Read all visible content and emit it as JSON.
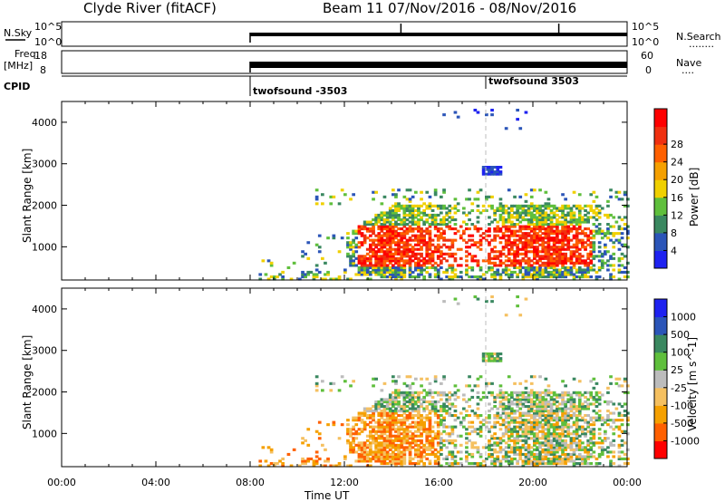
{
  "header": {
    "station": "Clyde River (fitACF)",
    "beam_date": "Beam 11   07/Nov/2016 - 08/Nov/2016"
  },
  "noise_panel": {
    "left_label": "N.Sky",
    "left_ticks": [
      "10^5",
      "10^0"
    ],
    "right_ticks": [
      "10^5",
      "10^0"
    ],
    "right_label": "N.Search",
    "right_dots": "........"
  },
  "freq_panel": {
    "left_label_1": "Freq.",
    "left_label_2": "[MHz]",
    "left_ticks": [
      "18",
      "8"
    ],
    "right_ticks": [
      "60",
      "0"
    ],
    "right_label": "Nave",
    "right_dots": "...."
  },
  "cpid": {
    "label": "CPID",
    "markers": [
      {
        "time_h": 8,
        "text": "twofsound -3503"
      },
      {
        "time_h": 18,
        "text": "twofsound 3503"
      }
    ]
  },
  "colors": {
    "power_scale": [
      "#1e22f0",
      "#2b55b8",
      "#3a8860",
      "#5fbf3c",
      "#f0d000",
      "#f5a000",
      "#ff6000",
      "#f03010",
      "#ff0000"
    ],
    "velocity_scale": [
      "#ff0000",
      "#ff6000",
      "#f5a000",
      "#f5c060",
      "#bcbcbc",
      "#5fbf3c",
      "#3a8860",
      "#2b55b8",
      "#1e22f0"
    ]
  },
  "chart_data": [
    {
      "type": "heatmap",
      "panel": "power",
      "ylabel": "Slant Range [km]",
      "yticks": [
        "1000",
        "2000",
        "3000",
        "4000"
      ],
      "ylim": [
        200,
        4500
      ],
      "colorbar_label": "Power [dB]",
      "colorbar_ticks": [
        "4",
        "8",
        "12",
        "16",
        "20",
        "24",
        "28"
      ],
      "data_start_h": 8
    },
    {
      "type": "heatmap",
      "panel": "velocity",
      "ylabel": "Slant Range [km]",
      "yticks": [
        "1000",
        "2000",
        "3000",
        "4000"
      ],
      "ylim": [
        200,
        4500
      ],
      "colorbar_label": "Velocity [m s^-1]",
      "colorbar_ticks": [
        "-1000",
        "-500",
        "-100",
        "-25",
        "25",
        "100",
        "500",
        "1000"
      ],
      "xlabel": "Time UT",
      "xticks": [
        "00:00",
        "04:00",
        "08:00",
        "12:00",
        "16:00",
        "20:00",
        "00:00"
      ],
      "xlim_hours": [
        0,
        24
      ],
      "data_start_h": 8
    }
  ]
}
